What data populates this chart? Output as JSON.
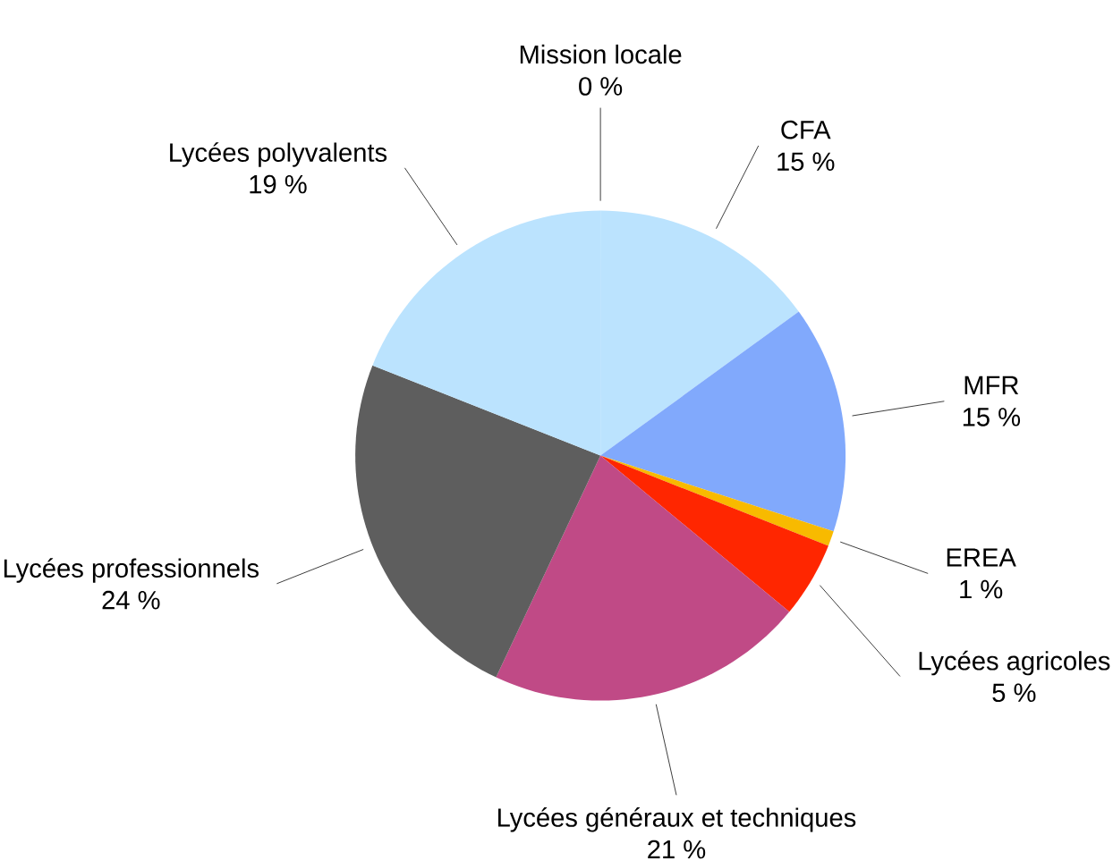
{
  "chart_data": {
    "type": "pie",
    "categories": [
      "Mission locale",
      "CFA",
      "MFR",
      "EREA",
      "Lycées agricoles",
      "Lycées généraux et techniques",
      "Lycées professionnels",
      "Lycées polyvalents"
    ],
    "values": [
      0,
      15,
      15,
      1,
      5,
      21,
      24,
      19
    ],
    "value_labels": [
      "0 %",
      "15 %",
      "15 %",
      "1 %",
      "5 %",
      "21 %",
      "24 %",
      "19 %"
    ],
    "colors": [
      "#7faaf5",
      "#bbe3fe",
      "#81a9fc",
      "#f8ba00",
      "#ff2600",
      "#c04a86",
      "#5e5e5e",
      "#bbe3fe"
    ]
  }
}
